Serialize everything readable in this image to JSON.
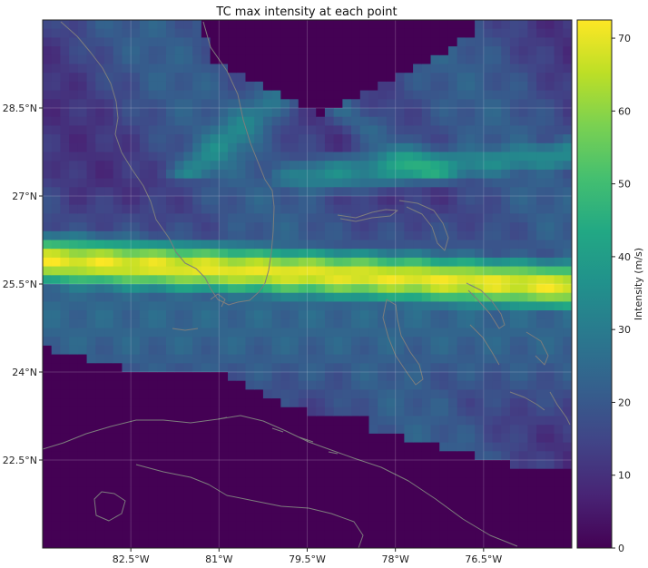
{
  "chart_data": {
    "type": "heatmap",
    "title": "TC max intensity at each point",
    "x_ticks": [
      "82.5°W",
      "81°W",
      "79.5°W",
      "78°W",
      "76.5°W"
    ],
    "y_ticks": [
      "28.5°N",
      "27°N",
      "25.5°N",
      "24°N",
      "22.5°N"
    ],
    "x_tick_values": [
      -82.5,
      -81.0,
      -79.5,
      -78.0,
      -76.5
    ],
    "y_tick_values": [
      28.5,
      27.0,
      25.5,
      24.0,
      22.5
    ],
    "xlim": [
      -84.0,
      -75.0
    ],
    "ylim": [
      21.0,
      30.0
    ],
    "grid": true,
    "colorbar": {
      "label": "Intensity (m/s)",
      "ticks": [
        "0",
        "10",
        "20",
        "30",
        "40",
        "50",
        "60",
        "70"
      ],
      "tick_values": [
        0,
        10,
        20,
        30,
        40,
        50,
        60,
        70
      ],
      "range": [
        0,
        72.5
      ],
      "colormap": "viridis",
      "placement": "right"
    },
    "colors": {
      "coastline": "#7d7d7d",
      "min": "#440154",
      "max": "#fde725"
    }
  }
}
